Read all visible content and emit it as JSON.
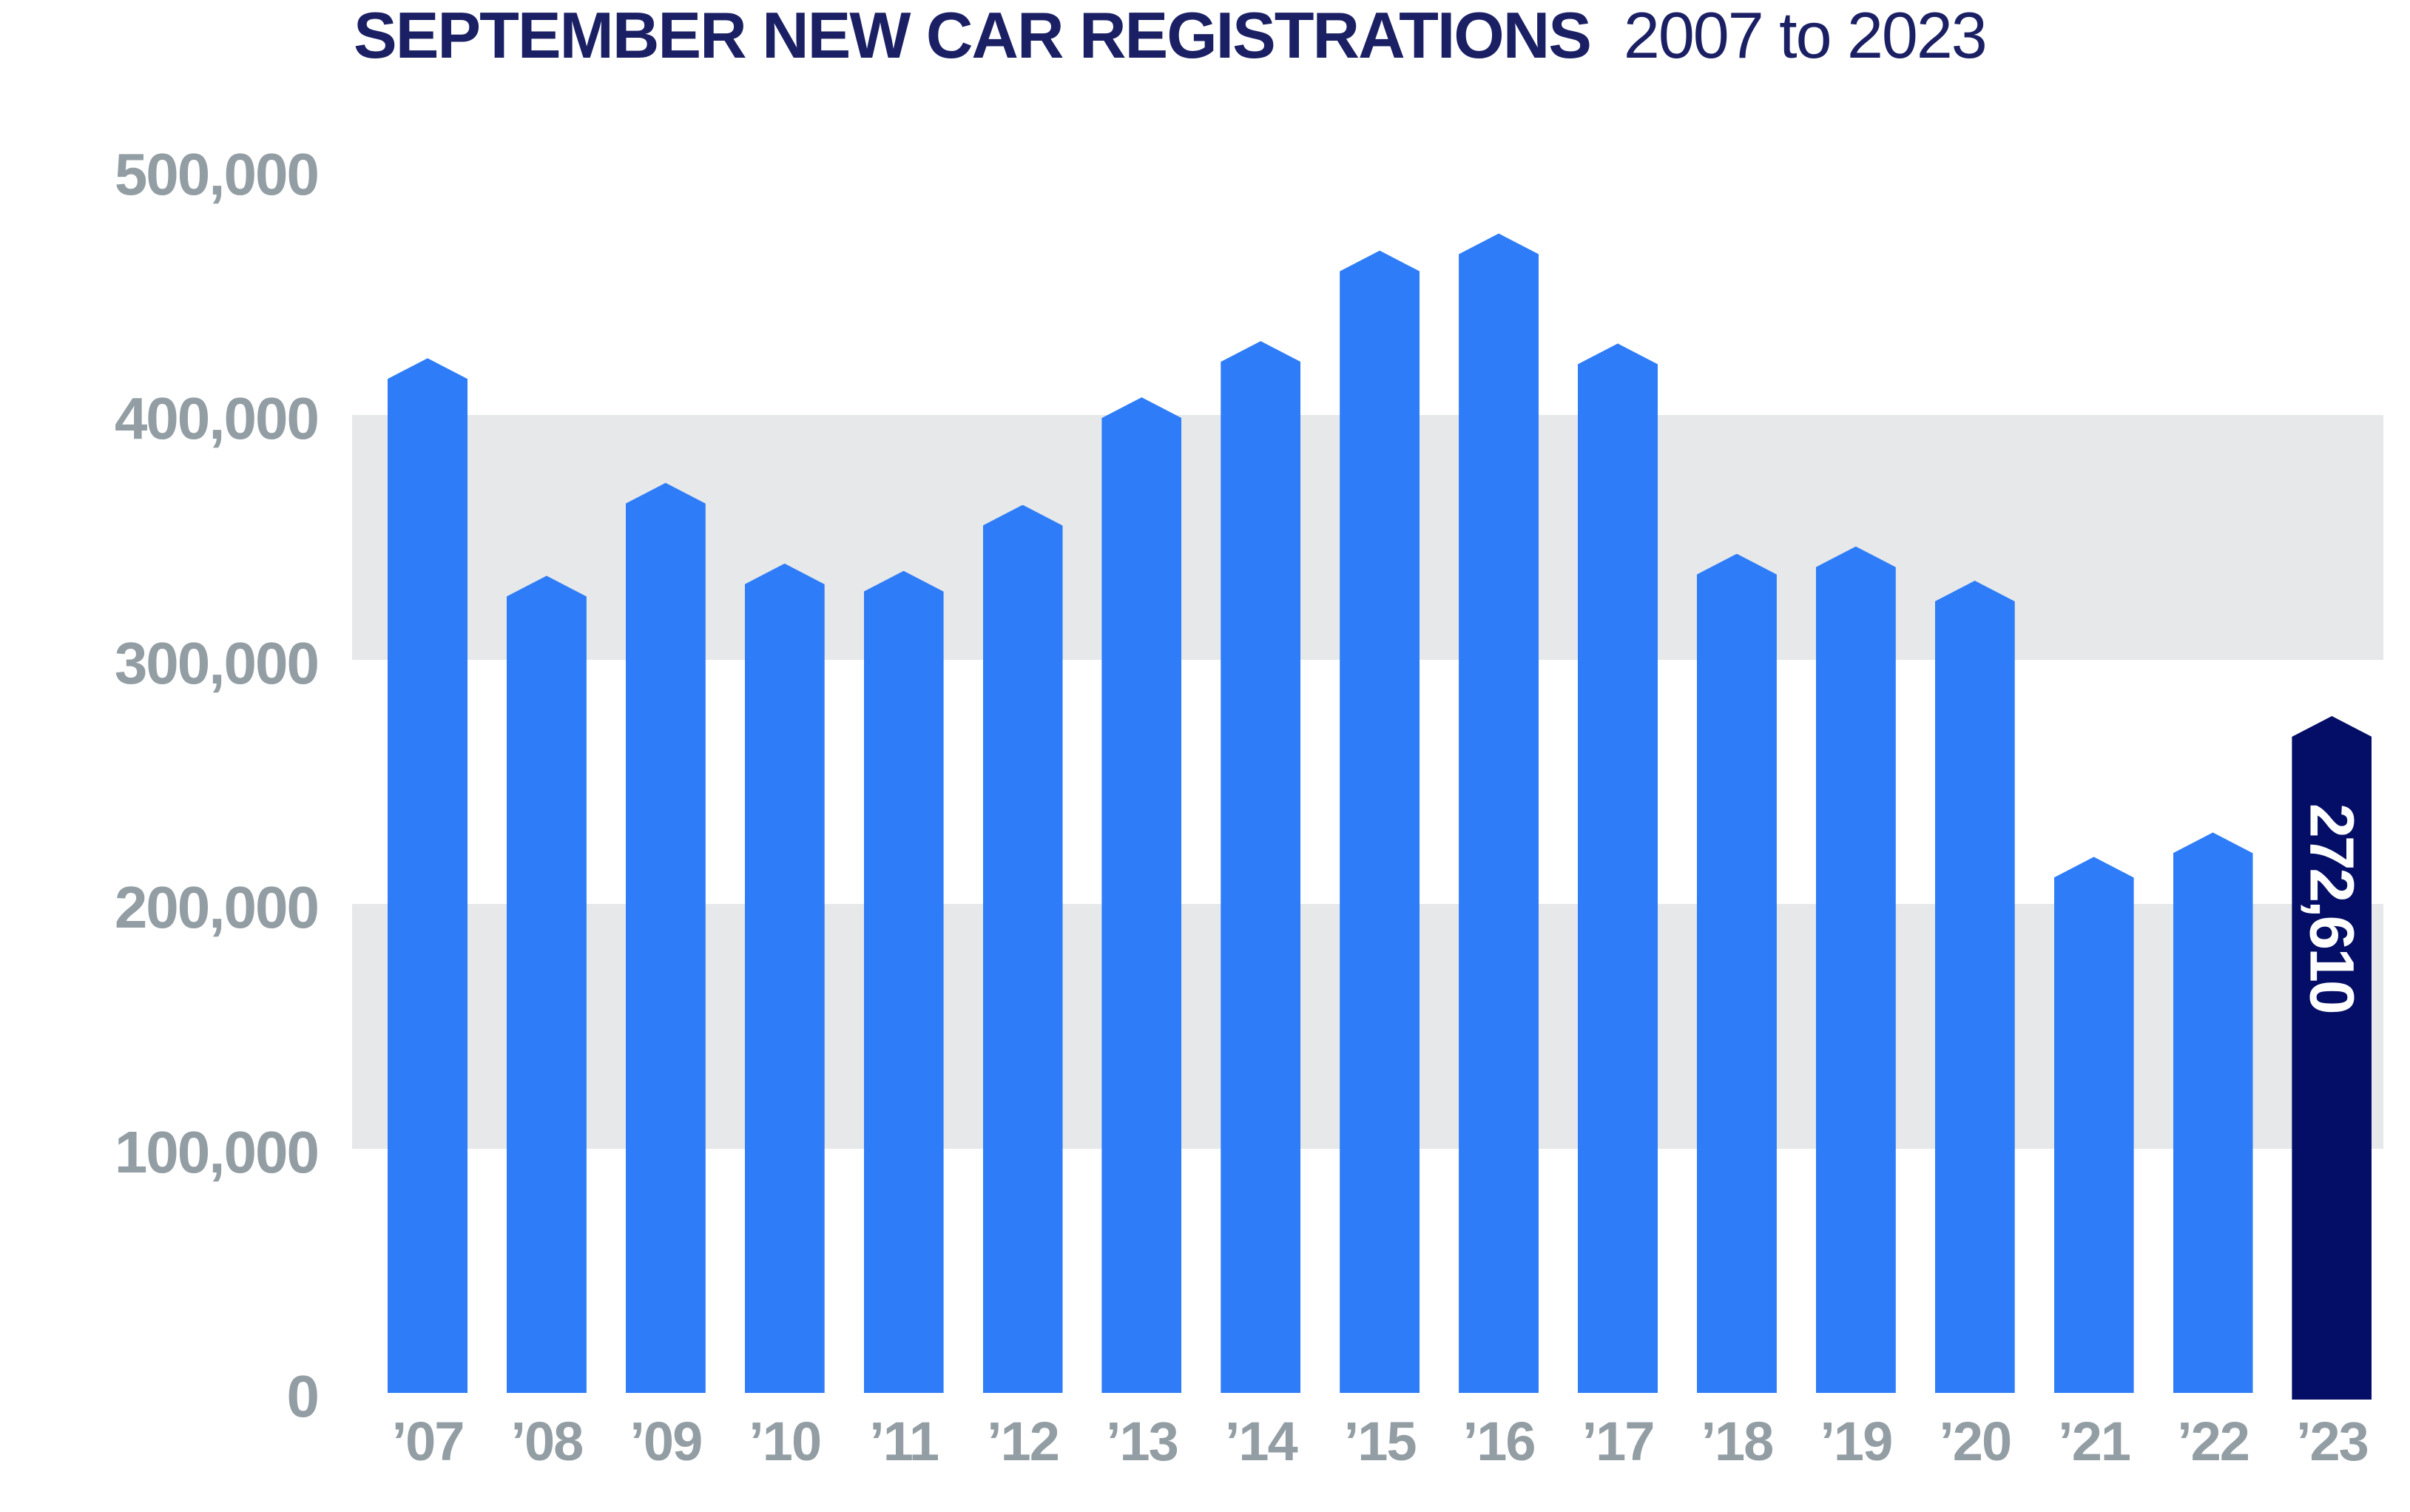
{
  "title": {
    "bold": "SEPTEMBER NEW CAR REGISTRATIONS",
    "regular": "2007 to 2023"
  },
  "chart_data": {
    "type": "bar",
    "title": "SEPTEMBER NEW CAR REGISTRATIONS 2007 to 2023",
    "xlabel": "",
    "ylabel": "",
    "categories": [
      "’07",
      "’08",
      "’09",
      "’10",
      "’11",
      "’12",
      "’13",
      "’14",
      "’15",
      "’16",
      "’17",
      "’18",
      "’19",
      "’20",
      "’21",
      "’22",
      "’23"
    ],
    "values": [
      419000,
      330000,
      368000,
      335000,
      332000,
      359000,
      403000,
      426000,
      463000,
      470000,
      425000,
      339000,
      342000,
      328000,
      215000,
      225000,
      272610
    ],
    "highlight": {
      "index": 16,
      "category": "’23",
      "value": 272610,
      "label": "272,610"
    },
    "ylim": [
      0,
      500000
    ],
    "yticks": [
      0,
      100000,
      200000,
      300000,
      400000,
      500000
    ],
    "ytick_labels": [
      "0",
      "100,000",
      "200,000",
      "300,000",
      "400,000",
      "500,000"
    ],
    "grid_bands": [
      [
        100000,
        200000
      ],
      [
        300000,
        400000
      ]
    ],
    "legend": "none",
    "bar_shape": "pointed-apex",
    "colors": {
      "bar": "#2E7CF7",
      "highlight_bar": "#050E66",
      "highlight_label_text": "#FFFFFF",
      "title_text": "#1A2063",
      "axis_text": "#939EA4",
      "grid_band": "#E6E8E9",
      "background": "#FFFFFF"
    }
  }
}
